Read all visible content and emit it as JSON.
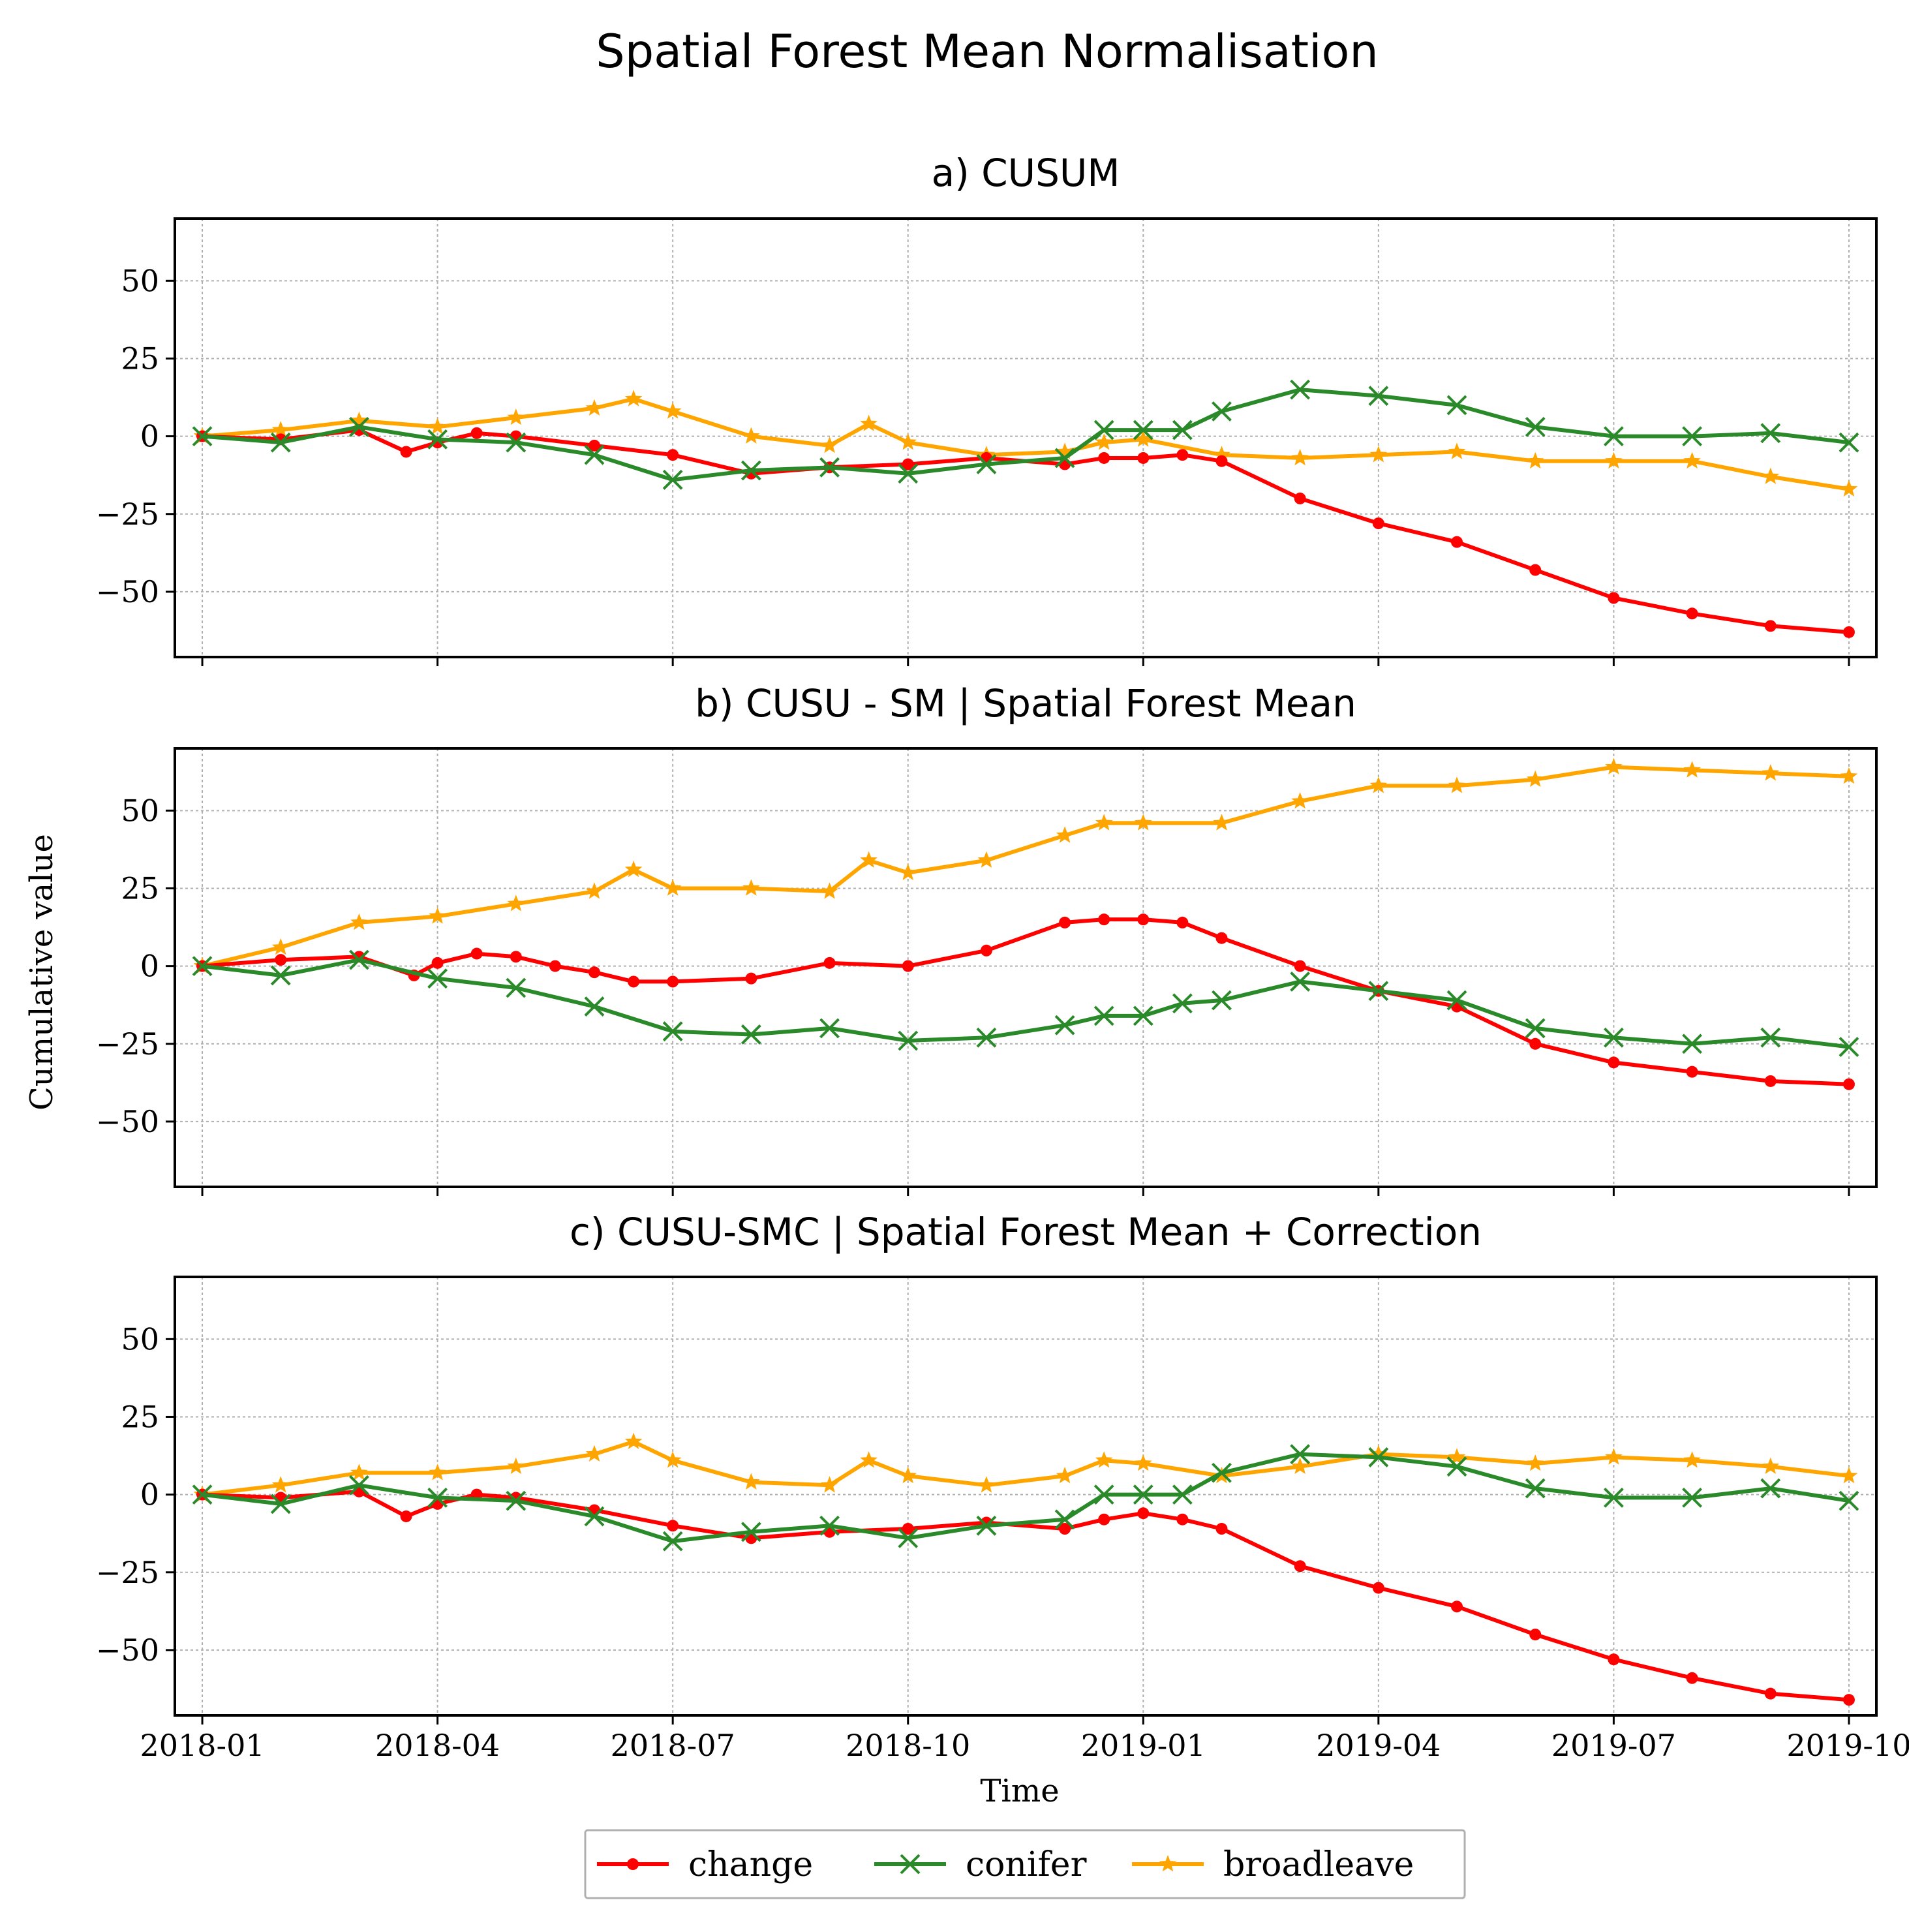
{
  "figure_title": "Spatial Forest Mean Normalisation",
  "shared": {
    "ylabel": "Cumulative value",
    "xlabel": "Time",
    "x_ticks": [
      "2018-01",
      "2018-04",
      "2018-07",
      "2018-10",
      "2019-01",
      "2019-04",
      "2019-07",
      "2019-10"
    ],
    "y_ticks": [
      -50,
      -25,
      0,
      25,
      50
    ]
  },
  "legend": [
    {
      "key": "change",
      "label": "change",
      "color": "#ff0000",
      "marker": "dot"
    },
    {
      "key": "conifer",
      "label": "conifer",
      "color": "#2a8a2a",
      "marker": "x"
    },
    {
      "key": "broadleave",
      "label": "broadleave",
      "color": "#ffa500",
      "marker": "star"
    }
  ],
  "chart_data": [
    {
      "type": "line",
      "title": "a) CUSUM",
      "xlabel": "",
      "ylabel": "",
      "x_unit": "months since 2018-01",
      "xlim": [
        -0.35,
        21.35
      ],
      "ylim": [
        -71,
        70
      ],
      "series": [
        {
          "name": "change",
          "x": [
            0,
            1,
            2,
            2.6,
            3,
            3.5,
            4,
            5,
            6,
            7,
            8,
            9,
            10,
            11,
            11.5,
            12,
            12.5,
            13,
            14,
            15,
            16,
            17,
            18,
            19,
            20,
            21
          ],
          "values": [
            0,
            -1,
            2,
            -5,
            -2,
            1,
            0,
            -3,
            -6,
            -12,
            -10,
            -9,
            -7,
            -9,
            -7,
            -7,
            -6,
            -8,
            -20,
            -28,
            -34,
            -43,
            -52,
            -57,
            -61,
            -63
          ]
        },
        {
          "name": "conifer",
          "x": [
            0,
            1,
            2,
            3,
            4,
            5,
            6,
            7,
            8,
            9,
            10,
            11,
            11.5,
            12,
            12.5,
            13,
            14,
            15,
            16,
            17,
            18,
            19,
            20,
            21
          ],
          "values": [
            0,
            -2,
            3,
            -1,
            -2,
            -6,
            -14,
            -11,
            -10,
            -12,
            -9,
            -7,
            2,
            2,
            2,
            8,
            15,
            13,
            10,
            3,
            0,
            0,
            1,
            -2
          ]
        },
        {
          "name": "broadleave",
          "x": [
            0,
            1,
            2,
            3,
            4,
            5,
            5.5,
            6,
            7,
            8,
            8.5,
            9,
            10,
            11,
            11.5,
            12,
            13,
            14,
            15,
            16,
            17,
            18,
            19,
            20,
            21
          ],
          "values": [
            0,
            2,
            5,
            3,
            6,
            9,
            12,
            8,
            0,
            -3,
            4,
            -2,
            -6,
            -5,
            -2,
            -1,
            -6,
            -7,
            -6,
            -5,
            -8,
            -8,
            -8,
            -13,
            -17
          ]
        }
      ]
    },
    {
      "type": "line",
      "title": "b) CUSU - SM | Spatial Forest Mean",
      "xlabel": "",
      "ylabel": "Cumulative value",
      "x_unit": "months since 2018-01",
      "xlim": [
        -0.35,
        21.35
      ],
      "ylim": [
        -71,
        70
      ],
      "series": [
        {
          "name": "change",
          "x": [
            0,
            1,
            2,
            2.7,
            3,
            3.5,
            4,
            4.5,
            5,
            5.5,
            6,
            7,
            8,
            9,
            10,
            11,
            11.5,
            12,
            12.5,
            13,
            14,
            15,
            16,
            17,
            18,
            19,
            20,
            21
          ],
          "values": [
            0,
            2,
            3,
            -3,
            1,
            4,
            3,
            0,
            -2,
            -5,
            -5,
            -4,
            1,
            0,
            5,
            14,
            15,
            15,
            14,
            9,
            0,
            -8,
            -13,
            -25,
            -31,
            -34,
            -37,
            -38
          ]
        },
        {
          "name": "conifer",
          "x": [
            0,
            1,
            2,
            3,
            4,
            5,
            6,
            7,
            8,
            9,
            10,
            11,
            11.5,
            12,
            12.5,
            13,
            14,
            15,
            16,
            17,
            18,
            19,
            20,
            21
          ],
          "values": [
            0,
            -3,
            2,
            -4,
            -7,
            -13,
            -21,
            -22,
            -20,
            -24,
            -23,
            -19,
            -16,
            -16,
            -12,
            -11,
            -5,
            -8,
            -11,
            -20,
            -23,
            -25,
            -23,
            -26
          ]
        },
        {
          "name": "broadleave",
          "x": [
            0,
            1,
            2,
            3,
            4,
            5,
            5.5,
            6,
            7,
            8,
            8.5,
            9,
            10,
            11,
            11.5,
            12,
            13,
            14,
            15,
            16,
            17,
            18,
            19,
            20,
            21
          ],
          "values": [
            0,
            6,
            14,
            16,
            20,
            24,
            31,
            25,
            25,
            24,
            34,
            30,
            34,
            42,
            46,
            46,
            46,
            53,
            58,
            58,
            60,
            64,
            63,
            62,
            61
          ]
        }
      ]
    },
    {
      "type": "line",
      "title": "c) CUSU-SMC | Spatial Forest Mean + Correction",
      "xlabel": "Time",
      "ylabel": "",
      "x_unit": "months since 2018-01",
      "xlim": [
        -0.35,
        21.35
      ],
      "ylim": [
        -71,
        70
      ],
      "series": [
        {
          "name": "change",
          "x": [
            0,
            1,
            2,
            2.6,
            3,
            3.5,
            4,
            5,
            6,
            7,
            8,
            9,
            10,
            11,
            11.5,
            12,
            12.5,
            13,
            14,
            15,
            16,
            17,
            18,
            19,
            20,
            21
          ],
          "values": [
            0,
            -1,
            1,
            -7,
            -3,
            0,
            -1,
            -5,
            -10,
            -14,
            -12,
            -11,
            -9,
            -11,
            -8,
            -6,
            -8,
            -11,
            -23,
            -30,
            -36,
            -45,
            -53,
            -59,
            -64,
            -66
          ]
        },
        {
          "name": "conifer",
          "x": [
            0,
            1,
            2,
            3,
            4,
            5,
            6,
            7,
            8,
            9,
            10,
            11,
            11.5,
            12,
            12.5,
            13,
            14,
            15,
            16,
            17,
            18,
            19,
            20,
            21
          ],
          "values": [
            0,
            -3,
            3,
            -1,
            -2,
            -7,
            -15,
            -12,
            -10,
            -14,
            -10,
            -8,
            0,
            0,
            0,
            7,
            13,
            12,
            9,
            2,
            -1,
            -1,
            2,
            -2
          ]
        },
        {
          "name": "broadleave",
          "x": [
            0,
            1,
            2,
            3,
            4,
            5,
            5.5,
            6,
            7,
            8,
            8.5,
            9,
            10,
            11,
            11.5,
            12,
            13,
            14,
            15,
            16,
            17,
            18,
            19,
            20,
            21
          ],
          "values": [
            0,
            3,
            7,
            7,
            9,
            13,
            17,
            11,
            4,
            3,
            11,
            6,
            3,
            6,
            11,
            10,
            6,
            9,
            13,
            12,
            10,
            12,
            11,
            9,
            6
          ]
        }
      ]
    }
  ]
}
